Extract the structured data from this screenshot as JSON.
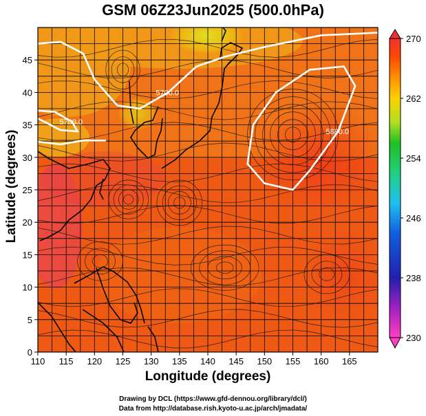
{
  "header": {
    "title": "GSM 06Z23Jun2025 (500.0hPa)"
  },
  "footer": {
    "drawing": "Drawing by DCL (https://www.gfd-dennou.org/library/dcl/)",
    "source": "Data from http://database.rish.kyoto-u.ac.jp/arch/jmadata/"
  },
  "chart_data": {
    "type": "heatmap",
    "title": "GSM 06Z23Jun2025 (500.0hPa)",
    "xlabel": "Longitude (degrees)",
    "ylabel": "Latitude  (degrees)",
    "xlim": [
      110,
      170
    ],
    "ylim": [
      0,
      50
    ],
    "x_ticks": [
      110,
      115,
      120,
      125,
      130,
      135,
      140,
      145,
      150,
      155,
      160,
      165
    ],
    "y_ticks": [
      0,
      5,
      10,
      15,
      20,
      25,
      30,
      35,
      40,
      45
    ],
    "colorbar": {
      "min": 230,
      "max": 270,
      "ticks": [
        230,
        238,
        246,
        254,
        262,
        270
      ],
      "colormap": [
        "#ff3fc4",
        "#a020c0",
        "#2020b0",
        "#1060e0",
        "#20c0f0",
        "#20d080",
        "#20c020",
        "#b0e020",
        "#ffd000",
        "#ff9000",
        "#ff4800",
        "#f03030"
      ]
    },
    "contours": [
      {
        "label": "5700.0",
        "points": [
          [
            110,
            47.5
          ],
          [
            114,
            47.8
          ],
          [
            118,
            46
          ],
          [
            120,
            42
          ],
          [
            124,
            38
          ],
          [
            128,
            37.5
          ],
          [
            133,
            40
          ],
          [
            138,
            44
          ],
          [
            143,
            45.5
          ],
          [
            150,
            47
          ],
          [
            160,
            48.8
          ],
          [
            170,
            49.2
          ]
        ]
      },
      {
        "label": "5700.0",
        "points": [
          [
            110,
            36
          ],
          [
            114,
            34.2
          ],
          [
            117,
            34
          ],
          [
            116,
            35.5
          ],
          [
            113,
            37
          ],
          [
            110,
            37.2
          ]
        ]
      },
      {
        "label": "5880.0",
        "points": [
          [
            148,
            35
          ],
          [
            152,
            40
          ],
          [
            158,
            43.5
          ],
          [
            164,
            44
          ],
          [
            166,
            41
          ],
          [
            163,
            34
          ],
          [
            158,
            28
          ],
          [
            155,
            25
          ],
          [
            150,
            26
          ],
          [
            147,
            29
          ],
          [
            148,
            35
          ]
        ]
      },
      {
        "label": "",
        "points": [
          [
            110,
            32.4
          ],
          [
            114,
            32
          ],
          [
            118,
            32.6
          ],
          [
            122,
            32.6
          ]
        ]
      }
    ]
  }
}
